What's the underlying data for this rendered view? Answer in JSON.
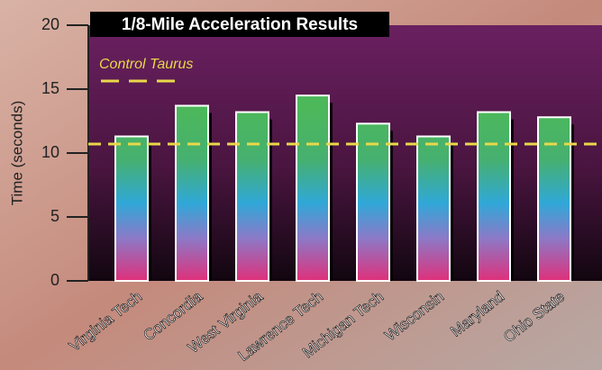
{
  "chart_data": {
    "type": "bar",
    "title": "1/8-Mile Acceleration Results",
    "y_label": "Time (seconds)",
    "categories": [
      "Virginia Tech",
      "Concordia",
      "West Virginia",
      "Lawrence Tech",
      "Michigan Tech",
      "Wisconsin",
      "Maryland",
      "Ohio State"
    ],
    "values": [
      11.3,
      13.7,
      13.2,
      14.5,
      12.3,
      11.3,
      13.2,
      12.8
    ],
    "ylim": [
      0,
      20
    ],
    "yticks": [
      0,
      5,
      10,
      15,
      20
    ],
    "reference_line": {
      "label": "Control Taurus",
      "value": 10.7,
      "color": "#e8d84a"
    }
  }
}
